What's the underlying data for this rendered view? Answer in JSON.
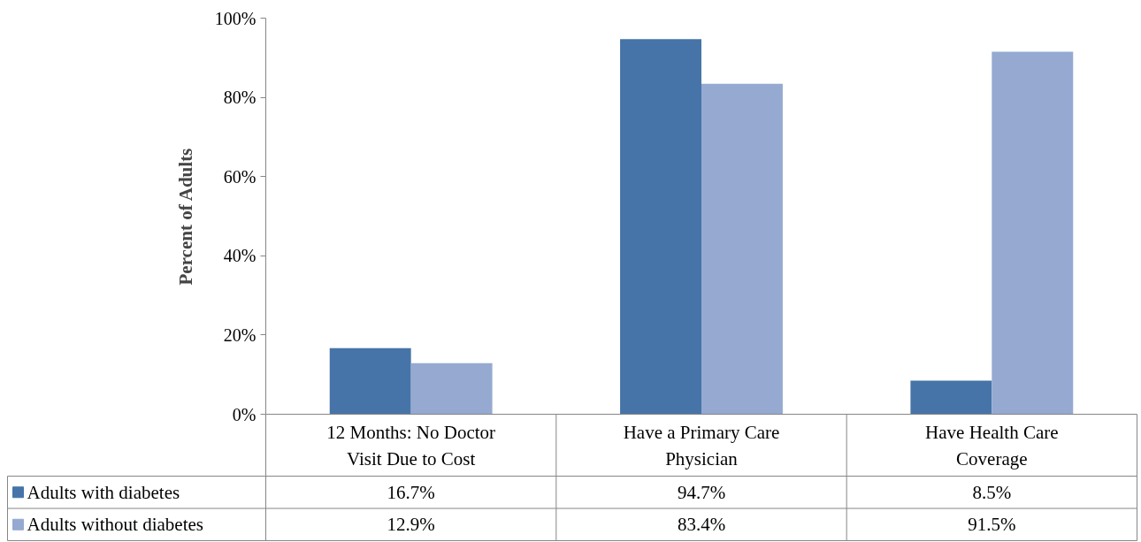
{
  "chart_data": {
    "type": "bar",
    "ylabel": "Percent of Adults",
    "categories": [
      "12 Months: No Doctor Visit Due to Cost",
      "Have a Primary Care Physician",
      "Have Health Care Coverage"
    ],
    "series": [
      {
        "name": "Adults with diabetes",
        "color": "#4674a8",
        "values": [
          16.7,
          94.7,
          8.5
        ],
        "value_labels": [
          "16.7%",
          "94.7%",
          "8.5%"
        ]
      },
      {
        "name": "Adults without diabetes",
        "color": "#95a9d1",
        "values": [
          12.9,
          83.4,
          91.5
        ],
        "value_labels": [
          "12.9%",
          "83.4%",
          "91.5%"
        ]
      }
    ],
    "ylim": [
      0,
      100
    ],
    "yticks": [
      {
        "value": 0,
        "label": "0%"
      },
      {
        "value": 20,
        "label": "20%"
      },
      {
        "value": 40,
        "label": "40%"
      },
      {
        "value": 60,
        "label": "60%"
      },
      {
        "value": 80,
        "label": "80%"
      },
      {
        "value": 100,
        "label": "100%"
      }
    ],
    "grid": false,
    "legend": "bottom",
    "data_labels": true
  }
}
